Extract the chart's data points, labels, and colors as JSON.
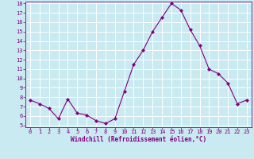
{
  "x": [
    0,
    1,
    2,
    3,
    4,
    5,
    6,
    7,
    8,
    9,
    10,
    11,
    12,
    13,
    14,
    15,
    16,
    17,
    18,
    19,
    20,
    21,
    22,
    23
  ],
  "y": [
    7.7,
    7.3,
    6.8,
    5.7,
    7.8,
    6.3,
    6.1,
    5.5,
    5.2,
    5.7,
    8.6,
    11.5,
    13.0,
    15.0,
    16.5,
    18.0,
    17.3,
    15.2,
    13.5,
    11.0,
    10.5,
    9.5,
    7.3,
    7.7
  ],
  "xlabel": "Windchill (Refroidissement éolien,°C)",
  "line_color": "#800080",
  "marker": "D",
  "marker_size": 2,
  "bg_color": "#c8eaf0",
  "grid_color": "#ffffff",
  "ylim": [
    5,
    18
  ],
  "xlim": [
    -0.5,
    23.5
  ],
  "yticks": [
    5,
    6,
    7,
    8,
    9,
    10,
    11,
    12,
    13,
    14,
    15,
    16,
    17,
    18
  ],
  "xticks": [
    0,
    1,
    2,
    3,
    4,
    5,
    6,
    7,
    8,
    9,
    10,
    11,
    12,
    13,
    14,
    15,
    16,
    17,
    18,
    19,
    20,
    21,
    22,
    23
  ]
}
